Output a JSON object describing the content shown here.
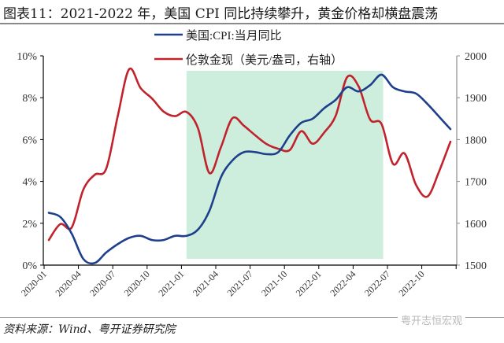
{
  "title": "图表11：2021-2022 年，美国 CPI 同比持续攀升，黄金价格却横盘震荡",
  "source": "资料来源：Wind、粤开证券研究院",
  "watermark": "粤开志恒宏观",
  "colors": {
    "cpi": "#1f3f8c",
    "gold": "#c0232c",
    "highlight": "#cdeedd",
    "axis": "#000000",
    "right_axis": "#8c8c8c"
  },
  "legend": [
    {
      "label": "美国:CPI:当月同比",
      "color": "#1f3f8c"
    },
    {
      "label": "伦敦金现（美元/盎司，右轴）",
      "color": "#c0232c"
    }
  ],
  "left_axis_ticks": [
    "0%",
    "2%",
    "4%",
    "6%",
    "8%",
    "10%"
  ],
  "right_axis_ticks": [
    "1500",
    "1600",
    "1700",
    "1800",
    "1900",
    "2000"
  ],
  "x_ticks": [
    "2020-01",
    "2020-04",
    "2020-07",
    "2020-10",
    "2021-01",
    "2021-04",
    "2021-07",
    "2021-10",
    "2022-01",
    "2022-04",
    "2022-07",
    "2022-10"
  ],
  "chart_data": {
    "type": "line",
    "title": "图表11：2021-2022 年，美国 CPI 同比持续攀升，黄金价格却横盘震荡",
    "xlabel": "",
    "ylabel": "美国CPI当月同比 (%)",
    "y2label": "伦敦金现 (美元/盎司)",
    "ylim": [
      0,
      10
    ],
    "y2lim": [
      1500,
      2000
    ],
    "grid": false,
    "legend_position": "top-center",
    "shaded_region": {
      "from": "2021-01",
      "to": "2022-06",
      "color": "#cdeedd"
    },
    "x": [
      "2020-01",
      "2020-02",
      "2020-03",
      "2020-04",
      "2020-05",
      "2020-06",
      "2020-07",
      "2020-08",
      "2020-09",
      "2020-10",
      "2020-11",
      "2020-12",
      "2021-01",
      "2021-02",
      "2021-03",
      "2021-04",
      "2021-05",
      "2021-06",
      "2021-07",
      "2021-08",
      "2021-09",
      "2021-10",
      "2021-11",
      "2021-12",
      "2022-01",
      "2022-02",
      "2022-03",
      "2022-04",
      "2022-05",
      "2022-06",
      "2022-07",
      "2022-08",
      "2022-09",
      "2022-10",
      "2022-11",
      "2022-12"
    ],
    "series": [
      {
        "name": "美国:CPI:当月同比",
        "axis": "left",
        "unit": "%",
        "values": [
          2.5,
          2.3,
          1.5,
          0.3,
          0.1,
          0.6,
          1.0,
          1.3,
          1.4,
          1.2,
          1.2,
          1.4,
          1.4,
          1.7,
          2.6,
          4.2,
          5.0,
          5.4,
          5.4,
          5.3,
          5.4,
          6.2,
          6.8,
          7.0,
          7.5,
          7.9,
          8.5,
          8.3,
          8.6,
          9.1,
          8.5,
          8.3,
          8.2,
          7.7,
          7.1,
          6.5
        ]
      },
      {
        "name": "伦敦金现（美元/盎司，右轴）",
        "axis": "right",
        "unit": "USD/oz",
        "values": [
          1560,
          1598,
          1590,
          1680,
          1716,
          1730,
          1855,
          1968,
          1923,
          1898,
          1867,
          1856,
          1866,
          1827,
          1720,
          1782,
          1851,
          1833,
          1810,
          1789,
          1778,
          1775,
          1820,
          1790,
          1817,
          1857,
          1949,
          1927,
          1848,
          1837,
          1742,
          1767,
          1692,
          1664,
          1723,
          1795
        ]
      }
    ]
  }
}
